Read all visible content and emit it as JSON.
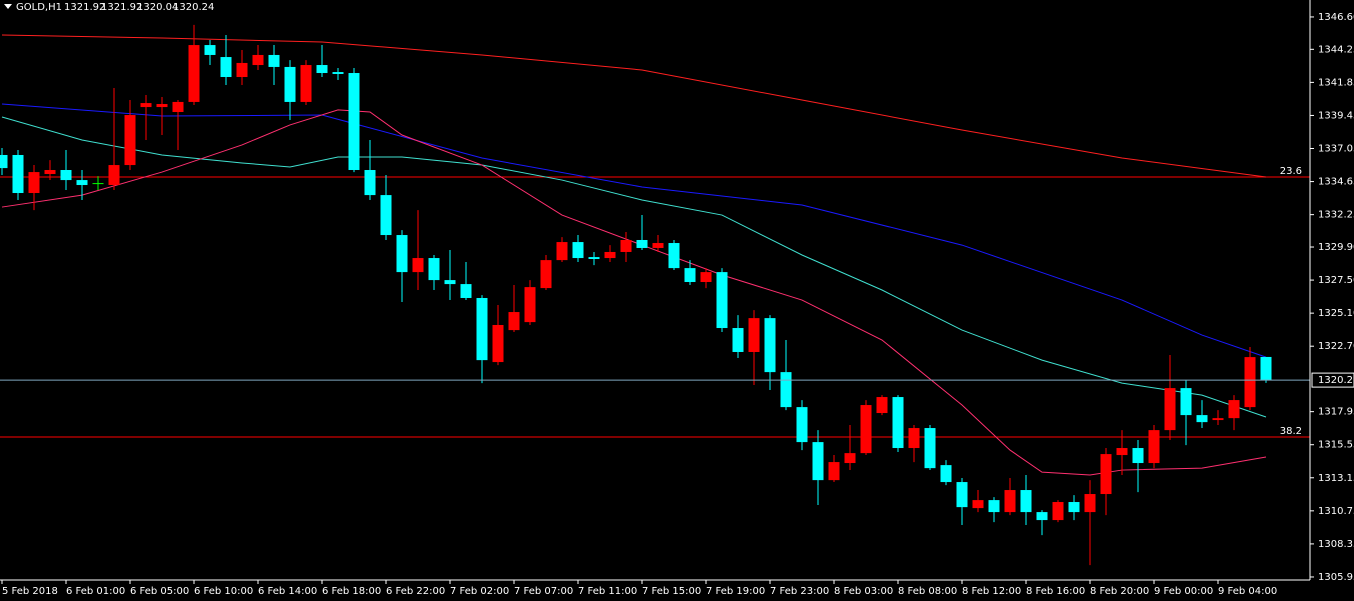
{
  "chart_data": {
    "type": "candlestick",
    "symbol": "GOLD,H1",
    "up_color": "#ff0000",
    "down_color": "#00ffff",
    "doji_color": "#00ff00",
    "background": "#000000",
    "ylim": [
      1305.73,
      1347.83
    ],
    "yticks": [
      {
        "value": 1346.6,
        "label": "1346.60"
      },
      1344.25,
      1341.85,
      1339.45,
      1337.05,
      1334.65,
      1332.25,
      {
        "value": 1329.9,
        "label": "1329.90"
      },
      {
        "value": 1327.5,
        "label": "1327.50"
      },
      {
        "value": 1325.1,
        "label": "1325.10"
      },
      {
        "value": 1322.7,
        "label": "1322.70"
      },
      1317.95,
      1315.55,
      1313.15,
      1310.75,
      1308.35,
      1305.95
    ],
    "time_labels": [
      "5 Feb 2018",
      "6 Feb 01:00",
      "6 Feb 05:00",
      "6 Feb 10:00",
      "6 Feb 14:00",
      "6 Feb 18:00",
      "6 Feb 22:00",
      "7 Feb 02:00",
      "7 Feb 07:00",
      "7 Feb 11:00",
      "7 Feb 15:00",
      "7 Feb 19:00",
      "7 Feb 23:00",
      "8 Feb 03:00",
      "8 Feb 08:00",
      "8 Feb 12:00",
      "8 Feb 16:00",
      "8 Feb 20:00",
      "9 Feb 00:00",
      "9 Feb 04:00"
    ],
    "open": [
      1336.58,
      1336.58,
      1333.82,
      1335.2,
      1335.49,
      1334.76,
      1334.54,
      1334.4,
      1335.85,
      1340.06,
      1340.06,
      1339.7,
      1340.43,
      1344.56,
      1343.69,
      1342.24,
      1343.11,
      1343.84,
      1342.97,
      1340.43,
      1343.11,
      1342.6,
      1342.53,
      1335.49,
      1333.67,
      1330.77,
      1328.08,
      1329.1,
      1327.5,
      1327.21,
      1326.2,
      1321.55,
      1323.87,
      1324.45,
      1326.92,
      1328.95,
      1330.26,
      1329.17,
      1329.1,
      1329.54,
      1330.41,
      1329.83,
      1330.19,
      1328.37,
      1327.36,
      1328.08,
      1324.02,
      1322.28,
      1324.74,
      1320.82,
      1318.28,
      1315.74,
      1312.98,
      1314.22,
      1314.94,
      1317.85,
      1319.01,
      1315.31,
      1316.76,
      1314.07,
      1312.84,
      1310.95,
      1311.53,
      1310.66,
      1312.26,
      1310.66,
      1310.08,
      1311.39,
      1310.66,
      1311.97,
      1314.8,
      1315.31,
      1314.22,
      1316.61,
      1319.66,
      1317.7,
      1317.34,
      1317.48,
      1318.28,
      1321.92
    ],
    "high": [
      1337.09,
      1336.94,
      1335.85,
      1336.21,
      1336.94,
      1335.49,
      1335.05,
      1341.44,
      1340.57,
      1340.93,
      1340.79,
      1340.57,
      1346.02,
      1344.93,
      1345.29,
      1344.2,
      1344.56,
      1344.56,
      1343.47,
      1343.47,
      1344.56,
      1342.89,
      1342.89,
      1337.67,
      1335.13,
      1331.13,
      1332.58,
      1329.32,
      1329.68,
      1328.81,
      1326.41,
      1325.69,
      1327.14,
      1327.5,
      1329.32,
      1330.62,
      1330.77,
      1329.54,
      1330.04,
      1330.99,
      1332.22,
      1330.77,
      1330.41,
      1328.95,
      1328.37,
      1328.37,
      1324.96,
      1325.32,
      1324.96,
      1323.15,
      1318.79,
      1316.61,
      1314.8,
      1316.98,
      1318.79,
      1319.15,
      1319.15,
      1316.98,
      1316.98,
      1314.43,
      1313.13,
      1312.26,
      1311.75,
      1313.13,
      1313.35,
      1310.8,
      1311.53,
      1311.89,
      1312.98,
      1315.31,
      1316.61,
      1315.89,
      1316.98,
      1322.06,
      1320.24,
      1318.79,
      1318.06,
      1319.15,
      1322.64,
      1321.92
    ],
    "low": [
      1335.13,
      1333.31,
      1332.58,
      1334.76,
      1334.04,
      1333.31,
      1334.04,
      1334.04,
      1335.49,
      1337.67,
      1338.03,
      1336.94,
      1340.21,
      1343.11,
      1341.66,
      1341.66,
      1342.75,
      1341.66,
      1339.12,
      1340.21,
      1342.24,
      1342.02,
      1335.34,
      1333.31,
      1330.41,
      1325.91,
      1326.78,
      1326.78,
      1326.05,
      1326.05,
      1320.02,
      1321.33,
      1323.73,
      1324.24,
      1326.78,
      1328.81,
      1328.81,
      1328.59,
      1328.81,
      1328.81,
      1329.68,
      1329.54,
      1328.23,
      1327.14,
      1326.92,
      1323.73,
      1321.84,
      1319.88,
      1319.52,
      1318.06,
      1315.16,
      1311.17,
      1312.84,
      1313.71,
      1314.8,
      1317.7,
      1315.02,
      1314.29,
      1313.71,
      1312.62,
      1309.72,
      1310.66,
      1309.93,
      1310.44,
      1309.72,
      1308.99,
      1309.93,
      1310.08,
      1306.81,
      1310.44,
      1313.35,
      1312.11,
      1313.85,
      1315.89,
      1315.52,
      1316.76,
      1316.98,
      1316.61,
      1318.06,
      1320.04
    ],
    "close": [
      1335.63,
      1333.82,
      1335.34,
      1335.49,
      1334.76,
      1334.4,
      1334.54,
      1335.85,
      1339.48,
      1340.35,
      1340.28,
      1340.43,
      1344.56,
      1343.84,
      1342.24,
      1343.26,
      1343.84,
      1342.97,
      1340.43,
      1343.11,
      1342.53,
      1342.46,
      1335.49,
      1333.67,
      1330.77,
      1328.08,
      1329.1,
      1327.5,
      1327.21,
      1326.2,
      1321.69,
      1324.24,
      1325.18,
      1326.99,
      1328.95,
      1330.26,
      1329.1,
      1329.03,
      1329.54,
      1330.41,
      1329.83,
      1330.19,
      1328.37,
      1327.36,
      1328.08,
      1324.02,
      1322.28,
      1324.74,
      1320.82,
      1318.28,
      1315.74,
      1312.98,
      1314.29,
      1314.94,
      1318.43,
      1319.01,
      1315.31,
      1316.76,
      1313.85,
      1312.84,
      1311.02,
      1311.53,
      1310.66,
      1312.26,
      1310.66,
      1310.08,
      1311.39,
      1310.66,
      1311.97,
      1314.87,
      1315.31,
      1314.22,
      1316.61,
      1319.66,
      1317.7,
      1317.19,
      1317.48,
      1318.79,
      1321.91,
      1320.24
    ],
    "moving_averages": [
      {
        "color": "#ff2020",
        "x": [
          0,
          10,
          20,
          30,
          40,
          50,
          60,
          70,
          79
        ],
        "values": [
          1345.29,
          1345.07,
          1344.78,
          1343.84,
          1342.75,
          1340.57,
          1338.39,
          1336.36,
          1334.98
        ]
      },
      {
        "color": "#1a1aff",
        "x": [
          0,
          10,
          20,
          30,
          40,
          50,
          60,
          70,
          75,
          79
        ],
        "values": [
          1340.28,
          1339.41,
          1339.48,
          1336.36,
          1334.26,
          1332.95,
          1330.04,
          1326.05,
          1323.51,
          1321.91
        ]
      },
      {
        "color": "#40e0d0",
        "x": [
          0,
          5,
          10,
          15,
          18,
          21,
          25,
          30,
          35,
          40,
          45,
          50,
          55,
          60,
          65,
          70,
          75,
          79
        ],
        "values": [
          1339.34,
          1337.67,
          1336.58,
          1336.0,
          1335.71,
          1336.43,
          1336.43,
          1335.85,
          1334.76,
          1333.31,
          1332.22,
          1329.32,
          1326.78,
          1323.87,
          1321.69,
          1320.02,
          1319.15,
          1317.56
        ]
      },
      {
        "color": "#ff3070",
        "x": [
          0,
          5,
          10,
          15,
          18,
          21,
          23,
          25,
          30,
          35,
          40,
          45,
          50,
          55,
          60,
          63,
          65,
          68,
          70,
          75,
          79
        ],
        "values": [
          1332.8,
          1333.67,
          1335.34,
          1337.31,
          1338.76,
          1339.85,
          1339.7,
          1338.03,
          1335.85,
          1332.22,
          1330.04,
          1327.87,
          1326.05,
          1323.15,
          1318.43,
          1315.16,
          1313.56,
          1313.35,
          1313.71,
          1313.85,
          1314.66
        ]
      }
    ],
    "levels": [
      {
        "label": "23.6",
        "value": 1334.98,
        "color": "#ff0000"
      },
      {
        "label": "38.2",
        "value": 1316.11,
        "color": "#ff0000"
      }
    ],
    "price_line_color": "#7fa8c0"
  }
}
